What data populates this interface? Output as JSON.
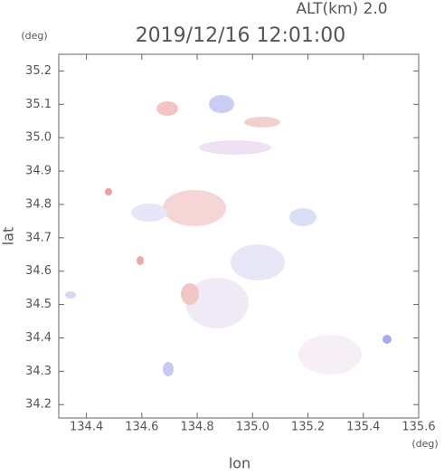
{
  "chart_data": {
    "type": "map",
    "title": "2019/12/16 12:01:00",
    "subtitle": "ALT(km) 2.0",
    "y_unit": "(deg)",
    "x_unit": "(deg)",
    "xlabel": "lon",
    "ylabel": "lat",
    "xlim": [
      134.3,
      135.6
    ],
    "ylim": [
      34.16,
      35.25
    ],
    "xticks": [
      134.4,
      134.6,
      134.8,
      {
        "value": 135,
        "label": "135.0"
      },
      135.2,
      135.4,
      135.6
    ],
    "yticks": [
      34.2,
      34.3,
      34.4,
      34.5,
      34.6,
      34.7,
      34.8,
      34.9,
      {
        "value": 35,
        "label": "35.0"
      },
      35.1,
      35.2
    ]
  }
}
